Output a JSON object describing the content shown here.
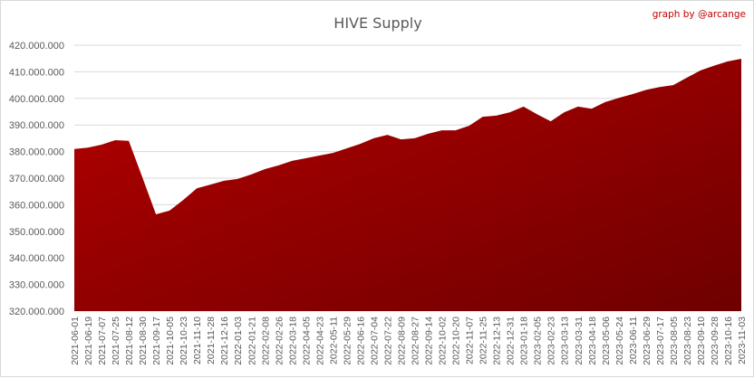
{
  "chart_data": {
    "type": "area",
    "title": "HIVE Supply",
    "annotation": "graph by @arcange",
    "xlabel": "",
    "ylabel": "",
    "ylim": [
      320000000,
      420000000
    ],
    "yticks": [
      "320.000.000",
      "330.000.000",
      "340.000.000",
      "350.000.000",
      "360.000.000",
      "370.000.000",
      "380.000.000",
      "390.000.000",
      "400.000.000",
      "410.000.000",
      "420.000.000"
    ],
    "grid": true,
    "legend": "none",
    "colors": {
      "fill_light": "#b40000",
      "fill_dark": "#6e0000",
      "grid": "#d9d9d9",
      "credit": "#c00000"
    },
    "x": [
      "2021-06-01",
      "2021-06-19",
      "2021-07-07",
      "2021-07-25",
      "2021-08-12",
      "2021-08-30",
      "2021-09-17",
      "2021-10-05",
      "2021-10-23",
      "2021-11-10",
      "2021-11-28",
      "2021-12-16",
      "2022-01-03",
      "2022-01-21",
      "2022-02-08",
      "2022-02-26",
      "2022-03-18",
      "2022-04-05",
      "2022-04-23",
      "2022-05-11",
      "2022-05-29",
      "2022-06-16",
      "2022-07-04",
      "2022-07-22",
      "2022-08-09",
      "2022-08-27",
      "2022-09-14",
      "2022-10-02",
      "2022-10-20",
      "2022-11-07",
      "2022-11-25",
      "2022-12-13",
      "2022-12-31",
      "2023-01-18",
      "2023-02-05",
      "2023-02-23",
      "2023-03-13",
      "2023-03-31",
      "2023-04-18",
      "2023-05-06",
      "2023-05-24",
      "2023-06-11",
      "2023-06-29",
      "2023-07-17",
      "2023-08-05",
      "2023-08-23",
      "2023-09-10",
      "2023-09-28",
      "2023-10-16",
      "2023-11-03"
    ],
    "values": [
      381000000,
      381500000,
      382600000,
      384300000,
      384000000,
      370300000,
      356400000,
      357800000,
      361800000,
      366200000,
      367600000,
      369000000,
      369700000,
      371400000,
      373400000,
      374800000,
      376500000,
      377500000,
      378500000,
      379500000,
      381200000,
      382900000,
      385000000,
      386300000,
      384600000,
      385000000,
      386700000,
      388000000,
      388000000,
      389700000,
      393100000,
      393500000,
      394800000,
      396900000,
      394000000,
      391400000,
      394800000,
      396900000,
      396100000,
      398600000,
      400200000,
      401600000,
      403200000,
      404300000,
      405000000,
      407800000,
      410500000,
      412300000,
      413900000,
      414900000
    ]
  }
}
